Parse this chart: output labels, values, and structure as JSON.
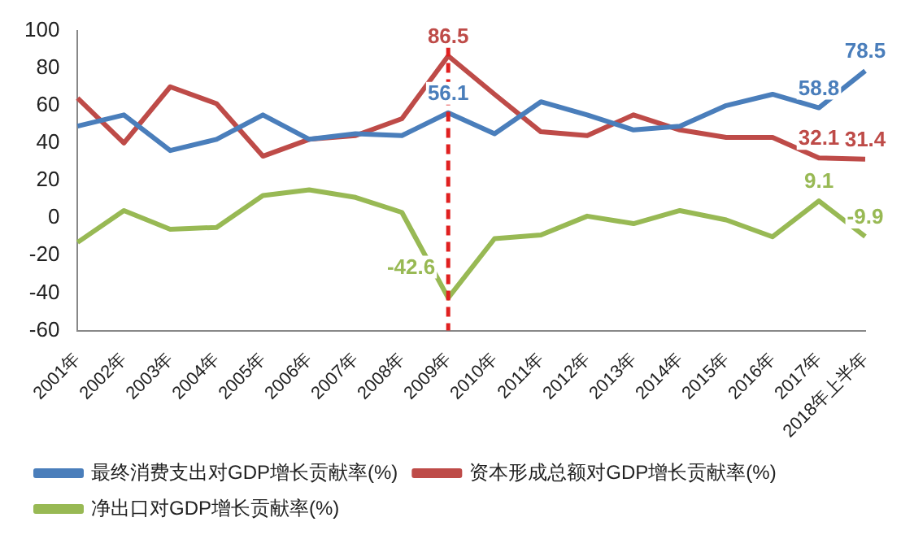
{
  "chart_data": {
    "type": "line",
    "categories": [
      "2001年",
      "2002年",
      "2003年",
      "2004年",
      "2005年",
      "2006年",
      "2007年",
      "2008年",
      "2009年",
      "2010年",
      "2011年",
      "2012年",
      "2013年",
      "2014年",
      "2015年",
      "2016年",
      "2017年",
      "2018年上半年"
    ],
    "series": [
      {
        "name": "最终消费支出对GDP增长贡献率(%)",
        "color": "#4a7ebb",
        "values": [
          49,
          55,
          36,
          42,
          55,
          42,
          45,
          44,
          56.1,
          45,
          62,
          55,
          47,
          49,
          60,
          66,
          58.8,
          78.5
        ],
        "value_labels": [
          null,
          null,
          null,
          null,
          null,
          null,
          null,
          null,
          "56.1",
          null,
          null,
          null,
          null,
          null,
          null,
          null,
          "58.8",
          "78.5"
        ]
      },
      {
        "name": "资本形成总额对GDP增长贡献率(%)",
        "color": "#be4b48",
        "values": [
          64,
          40,
          70,
          61,
          33,
          42,
          44,
          53,
          86.5,
          66,
          46,
          44,
          55,
          47,
          43,
          43,
          32.1,
          31.4
        ],
        "value_labels": [
          null,
          null,
          null,
          null,
          null,
          null,
          null,
          null,
          "86.5",
          null,
          null,
          null,
          null,
          null,
          null,
          null,
          "32.1",
          "31.4"
        ]
      },
      {
        "name": "净出口对GDP增长贡献率(%)",
        "color": "#98b954",
        "values": [
          -13,
          4,
          -6,
          -5,
          12,
          15,
          11,
          3,
          -42.6,
          -11,
          -9,
          1,
          -3,
          4,
          -1,
          -10,
          9.1,
          -9.9
        ],
        "value_labels": [
          null,
          null,
          null,
          null,
          null,
          null,
          null,
          null,
          "-42.6",
          null,
          null,
          null,
          null,
          null,
          null,
          null,
          "9.1",
          "-9.9"
        ]
      }
    ],
    "ylim": [
      -60,
      100
    ],
    "yticks": [
      -60,
      -40,
      -20,
      0,
      20,
      40,
      60,
      80,
      100
    ],
    "grid": false,
    "legend": "bottom",
    "marker": "none",
    "line_style": "solid",
    "ref_lines": [
      {
        "axis": "x",
        "value": "2009年",
        "color": "#e02020",
        "line_style": "dashed"
      }
    ]
  }
}
